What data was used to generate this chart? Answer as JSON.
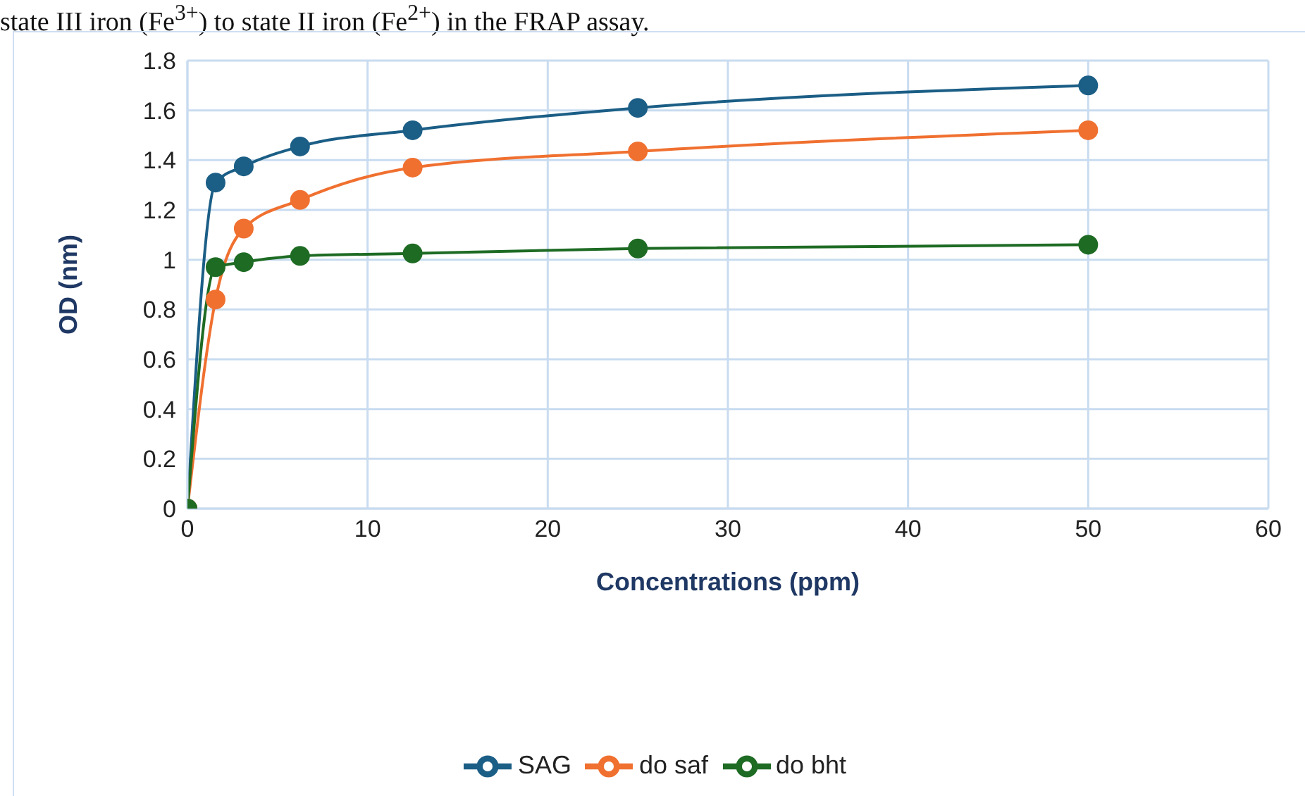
{
  "chart_data": {
    "type": "line",
    "annotations": [
      "state III iron (Fe$^{3+}$) to state II iron (Fe$^{2+}$) in the FRAP assay."
    ],
    "xlabel": "Concentrations (ppm)",
    "ylabel": "OD (nm)",
    "x": [
      0,
      1.5625,
      3.125,
      6.25,
      12.5,
      25,
      50
    ],
    "series": [
      {
        "name": "SAG",
        "color": "#1b5e86",
        "values": [
          0,
          1.31,
          1.375,
          1.455,
          1.52,
          1.61,
          1.7
        ]
      },
      {
        "name": "do saf",
        "color": "#f07030",
        "values": [
          0,
          0.84,
          1.125,
          1.24,
          1.37,
          1.435,
          1.52
        ]
      },
      {
        "name": "do bht",
        "color": "#1e6b24",
        "values": [
          0,
          0.97,
          0.99,
          1.015,
          1.025,
          1.045,
          1.06
        ]
      }
    ],
    "xlim": [
      0,
      60
    ],
    "xticks": [
      0,
      10,
      20,
      30,
      40,
      50,
      60
    ],
    "ylim": [
      0,
      1.8
    ],
    "yticks": [
      0,
      0.2,
      0.4,
      0.6,
      0.8,
      1,
      1.2,
      1.4,
      1.6,
      1.8
    ],
    "grid": true,
    "legend": "bottom",
    "marker": "circle",
    "line_style": "solid"
  }
}
